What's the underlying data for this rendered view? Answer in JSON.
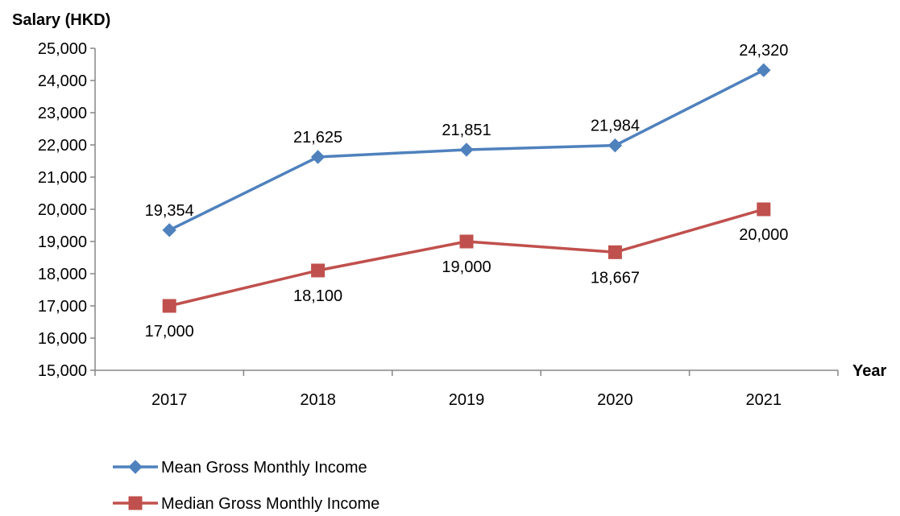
{
  "chart_data": {
    "type": "line",
    "ylabel": "Salary (HKD)",
    "xlabel": "Year",
    "categories": [
      "2017",
      "2018",
      "2019",
      "2020",
      "2021"
    ],
    "ylim": [
      15000,
      25000
    ],
    "ytick_step": 1000,
    "ytick_labels": [
      "15,000",
      "16,000",
      "17,000",
      "18,000",
      "19,000",
      "20,000",
      "21,000",
      "22,000",
      "23,000",
      "24,000",
      "25,000"
    ],
    "grid": false,
    "legend_position": "bottom",
    "series": [
      {
        "name": "Mean Gross Monthly Income",
        "values": [
          19354,
          21625,
          21851,
          21984,
          24320
        ],
        "labels": [
          "19,354",
          "21,625",
          "21,851",
          "21,984",
          "24,320"
        ],
        "label_position": "above",
        "marker": "diamond",
        "color": "#4F81BD"
      },
      {
        "name": "Median Gross Monthly Income",
        "values": [
          17000,
          18100,
          19000,
          18667,
          20000
        ],
        "labels": [
          "17,000",
          "18,100",
          "19,000",
          "18,667",
          "20,000"
        ],
        "label_position": "below",
        "marker": "square",
        "color": "#C0504D"
      }
    ]
  }
}
